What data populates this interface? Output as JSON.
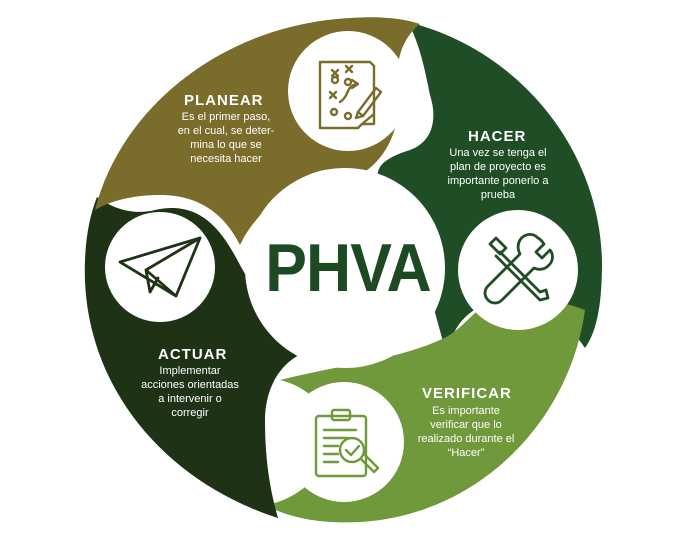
{
  "center": {
    "label": "PHVA"
  },
  "colors": {
    "planear": "#7a6d2c",
    "hacer": "#1f4d25",
    "verificar": "#6f993a",
    "actuar": "#1e3316",
    "center_text": "#1d4a22"
  },
  "planear": {
    "title": "PLANEAR",
    "lines": [
      "Es el primer paso,",
      "en el cual, se deter-",
      "mina lo que se",
      "necesita hacer"
    ],
    "icon": "strategy-board-icon"
  },
  "hacer": {
    "title": "HACER",
    "lines": [
      "Una vez se tenga el",
      "plan de proyecto es",
      "importante ponerlo a",
      "prueba"
    ],
    "icon": "tools-icon"
  },
  "verificar": {
    "title": "VERIFICAR",
    "lines": [
      "Es importante",
      "verificar que lo",
      "realizado durante el",
      "“Hacer”"
    ],
    "icon": "clipboard-check-icon"
  },
  "actuar": {
    "title": "ACTUAR",
    "lines": [
      "Implementar",
      "acciones orientadas",
      "a intervenir o",
      "corregir"
    ],
    "icon": "paper-plane-icon"
  }
}
